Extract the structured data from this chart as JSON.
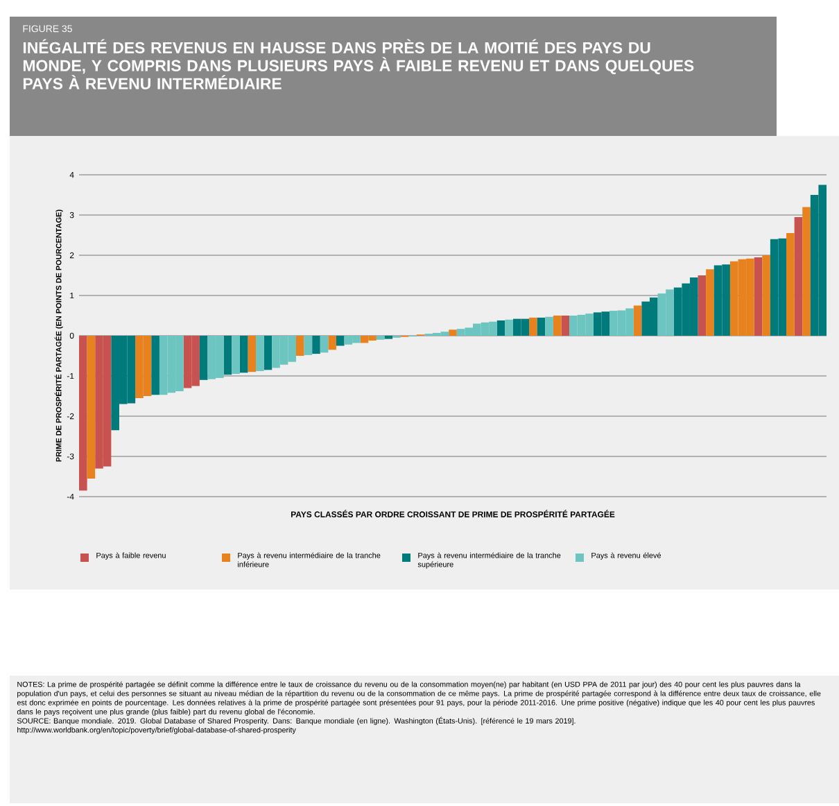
{
  "chart_data": {
    "type": "bar",
    "subtitle": "FIGURE 35",
    "title": "INÉGALITÉ DES REVENUS EN HAUSSE DANS PRÈS DE LA MOITIÉ DES PAYS DU MONDE, Y COMPRIS DANS PLUSIEURS PAYS À FAIBLE REVENU ET DANS QUELQUES PAYS À REVENU INTERMÉDIAIRE",
    "xlabel": "PAYS CLASSÉS PAR ORDRE CROISSANT DE PRIME DE PROSPÉRITÉ PARTAGÉE",
    "ylabel": "PRIME DE PROSPÉRITÉ PARTAGÉE (EN POINTS DE POURCENTAGE)",
    "categories": [
      null,
      null,
      null,
      null,
      null,
      null,
      null,
      null,
      null,
      null,
      null,
      null,
      null,
      null,
      null,
      null,
      null,
      null,
      null,
      null,
      null,
      null,
      null,
      null,
      null,
      null,
      null,
      null,
      null,
      null,
      null,
      null,
      null,
      null,
      null,
      null,
      null,
      null,
      null,
      null,
      null,
      null,
      null,
      null,
      null,
      null,
      null,
      null,
      null,
      null,
      null,
      null,
      null,
      null,
      null,
      null,
      null,
      null,
      null,
      null,
      null,
      null,
      null,
      null,
      null,
      null,
      null,
      null,
      null,
      null,
      null,
      null,
      null,
      null,
      null,
      null,
      null,
      null,
      null,
      null,
      null,
      null,
      null,
      null,
      null,
      null,
      null,
      null,
      null,
      null,
      null,
      null,
      null
    ],
    "series": [
      {
        "name": "Pays à faible revenu",
        "color": "#c8524f",
        "values": [
          -3.85,
          null,
          -3.3,
          -3.25,
          null,
          null,
          null,
          null,
          null,
          null,
          null,
          null,
          null,
          -1.3,
          -1.25,
          null,
          null,
          null,
          null,
          null,
          null,
          null,
          null,
          null,
          null,
          null,
          null,
          null,
          null,
          null,
          null,
          null,
          null,
          null,
          null,
          null,
          null,
          null,
          null,
          null,
          null,
          null,
          null,
          null,
          null,
          null,
          null,
          null,
          null,
          null,
          null,
          null,
          null,
          null,
          null,
          null,
          null,
          null,
          null,
          null,
          0.5,
          null,
          null,
          null,
          null,
          null,
          null,
          null,
          null,
          null,
          null,
          null,
          null,
          null,
          null,
          null,
          null,
          1.5,
          null,
          null,
          null,
          null,
          null,
          null,
          1.95,
          null,
          null,
          null,
          null,
          2.95,
          null,
          null,
          null
        ]
      },
      {
        "name": "Pays à revenu intermédiaire de la tranche inférieure",
        "color": "#e8821e",
        "values": [
          null,
          -3.55,
          null,
          null,
          null,
          null,
          null,
          -1.55,
          -1.5,
          null,
          null,
          null,
          null,
          null,
          null,
          null,
          null,
          null,
          null,
          null,
          null,
          -0.9,
          null,
          null,
          null,
          null,
          null,
          -0.5,
          null,
          null,
          null,
          -0.35,
          null,
          null,
          null,
          -0.18,
          -0.12,
          null,
          null,
          null,
          -0.03,
          null,
          0.03,
          null,
          null,
          null,
          0.15,
          null,
          null,
          null,
          null,
          null,
          null,
          null,
          null,
          null,
          0.45,
          null,
          null,
          0.5,
          null,
          null,
          null,
          null,
          null,
          null,
          null,
          null,
          null,
          0.75,
          null,
          null,
          null,
          null,
          null,
          null,
          null,
          null,
          1.65,
          null,
          null,
          1.85,
          1.9,
          1.92,
          null,
          2.0,
          null,
          null,
          2.55,
          null,
          3.2,
          null,
          null
        ]
      },
      {
        "name": "Pays à revenu intermédiaire de la tranche supérieure",
        "color": "#007a7a",
        "values": [
          null,
          null,
          null,
          null,
          -2.35,
          -1.7,
          -1.68,
          null,
          null,
          -1.47,
          null,
          null,
          null,
          null,
          null,
          -1.1,
          null,
          null,
          -0.97,
          null,
          -0.92,
          null,
          null,
          -0.85,
          null,
          null,
          null,
          null,
          null,
          -0.45,
          null,
          null,
          -0.25,
          null,
          null,
          null,
          null,
          null,
          -0.08,
          null,
          null,
          null,
          null,
          null,
          null,
          null,
          null,
          null,
          null,
          null,
          null,
          null,
          0.38,
          null,
          0.42,
          0.42,
          null,
          0.45,
          null,
          null,
          null,
          null,
          null,
          null,
          0.58,
          0.6,
          null,
          null,
          null,
          null,
          0.85,
          0.95,
          null,
          null,
          1.2,
          1.3,
          1.45,
          null,
          null,
          1.75,
          1.77,
          null,
          null,
          null,
          null,
          null,
          2.4,
          2.42,
          null,
          null,
          null,
          3.5,
          3.75
        ]
      },
      {
        "name": "Pays à revenu élevé",
        "color": "#6cc5c0",
        "values": [
          null,
          null,
          null,
          null,
          null,
          null,
          null,
          null,
          null,
          null,
          -1.47,
          -1.42,
          -1.38,
          null,
          null,
          null,
          -1.08,
          -1.05,
          null,
          -0.95,
          null,
          null,
          -0.88,
          null,
          -0.8,
          -0.72,
          -0.65,
          null,
          -0.48,
          null,
          -0.42,
          null,
          null,
          -0.22,
          -0.18,
          null,
          null,
          -0.1,
          null,
          -0.05,
          null,
          -0.02,
          null,
          0.05,
          0.07,
          0.1,
          null,
          0.17,
          0.2,
          0.3,
          0.33,
          0.35,
          null,
          0.4,
          null,
          null,
          null,
          null,
          0.47,
          null,
          null,
          0.5,
          0.52,
          0.55,
          null,
          null,
          0.62,
          0.63,
          0.68,
          null,
          null,
          null,
          1.05,
          1.15,
          null,
          null,
          null,
          null,
          null,
          null,
          null,
          null,
          null,
          null,
          null,
          null,
          null,
          null,
          null,
          null,
          null,
          null,
          null
        ]
      }
    ],
    "ylim": [
      -4,
      4
    ],
    "yticks": [
      -4,
      -3,
      -2,
      -1,
      0,
      1,
      2,
      3,
      4
    ],
    "grid": "y",
    "legend": "bottom",
    "annotations": [
      "NOTES: La prime de prospérité partagée se définit comme la différence entre le taux de croissance du revenu ou de la consommation moyen(ne) par habitant (en USD PPA de 2011 par jour) des 40 pour cent les plus pauvres dans la population d'un pays, et celui des personnes se situant au niveau médian de la répartition du revenu ou de la consommation de ce même pays. La prime de prospérité partagée correspond à la différence entre deux taux de croissance, elle est donc exprimée en points de pourcentage. Les données relatives à la prime de prospérité partagée sont présentées pour 91 pays, pour la période 2011-2016. Une prime positive (négative) indique que les 40 pour cent les plus pauvres dans le pays reçoivent une plus grande (plus faible) part du revenu global de l'économie.",
      "SOURCE: Banque mondiale. 2019. Global Database of Shared Prosperity. Dans: Banque mondiale (en ligne). Washington (États-Unis). [référencé le 19 mars 2019].",
      "http://www.worldbank.org/en/topic/poverty/brief/global-database-of-shared-prosperity"
    ]
  }
}
